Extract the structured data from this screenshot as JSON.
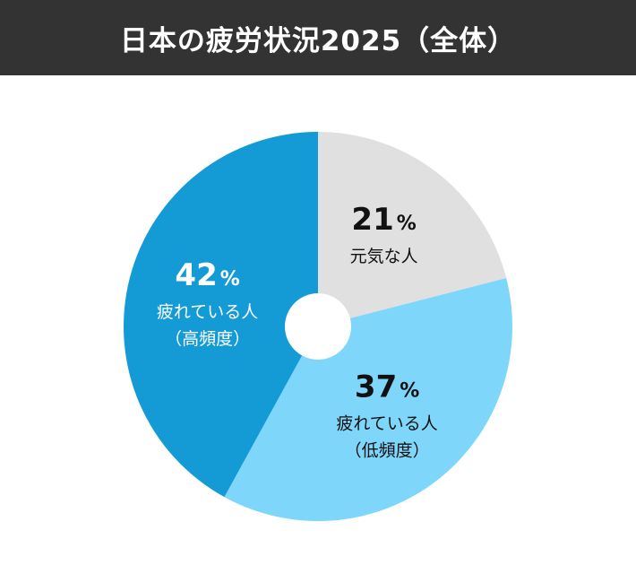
{
  "title": "日本の疲労状況2025（全体）",
  "colors": {
    "title_bg": "#333333",
    "title_text": "#ffffff",
    "healthy": "#e0e0e0",
    "tired_low": "#7fd6fb",
    "tired_high": "#149bd6",
    "hole": "#ffffff"
  },
  "chart_data": {
    "type": "pie",
    "donut": true,
    "start": "12 o'clock",
    "direction": "clockwise",
    "title": "日本の疲労状況2025（全体）",
    "slices": [
      {
        "key": "healthy",
        "value": 21,
        "value_label": "21",
        "unit": "%",
        "label_lines": [
          "元気な人"
        ],
        "color": "#e0e0e0",
        "text_color": "#111111"
      },
      {
        "key": "tired_low",
        "value": 37,
        "value_label": "37",
        "unit": "%",
        "label_lines": [
          "疲れている人",
          "（低頻度）"
        ],
        "color": "#7fd6fb",
        "text_color": "#111111"
      },
      {
        "key": "tired_high",
        "value": 42,
        "value_label": "42",
        "unit": "%",
        "label_lines": [
          "疲れている人",
          "（高頻度）"
        ],
        "color": "#149bd6",
        "text_color": "#ffffff"
      }
    ]
  }
}
